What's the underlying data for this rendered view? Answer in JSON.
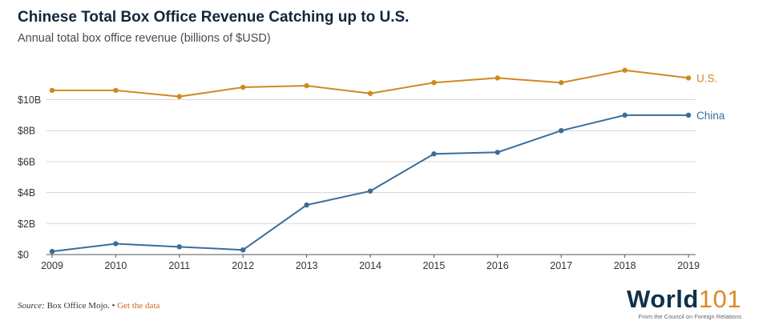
{
  "chart_data": {
    "type": "line",
    "title": "Chinese Total Box Office Revenue Catching up to U.S.",
    "subtitle": "Annual total box office revenue (billions of $USD)",
    "x": [
      "2009",
      "2010",
      "2011",
      "2012",
      "2013",
      "2014",
      "2015",
      "2016",
      "2017",
      "2018",
      "2019"
    ],
    "ylim": [
      0,
      12
    ],
    "yticks": [
      0,
      2,
      4,
      6,
      8,
      10
    ],
    "ytick_labels": [
      "$0",
      "$2B",
      "$4B",
      "$6B",
      "$8B",
      "$10B"
    ],
    "grid": true,
    "series": [
      {
        "name": "U.S.",
        "color": "#d0891f",
        "values": [
          10.6,
          10.6,
          10.2,
          10.8,
          10.9,
          10.4,
          11.1,
          11.4,
          11.1,
          11.9,
          11.4
        ]
      },
      {
        "name": "China",
        "color": "#3a6d9a",
        "values": [
          0.2,
          0.7,
          0.5,
          0.3,
          3.2,
          4.1,
          6.5,
          6.6,
          8.0,
          9.0,
          9.0
        ]
      }
    ]
  },
  "footer": {
    "source_label": "Source:",
    "source_text": " Box Office Mojo. •",
    "get_data": " Get the data"
  },
  "logo": {
    "word": "World",
    "number": "101",
    "tagline": "From the Council on Foreign Relations"
  }
}
